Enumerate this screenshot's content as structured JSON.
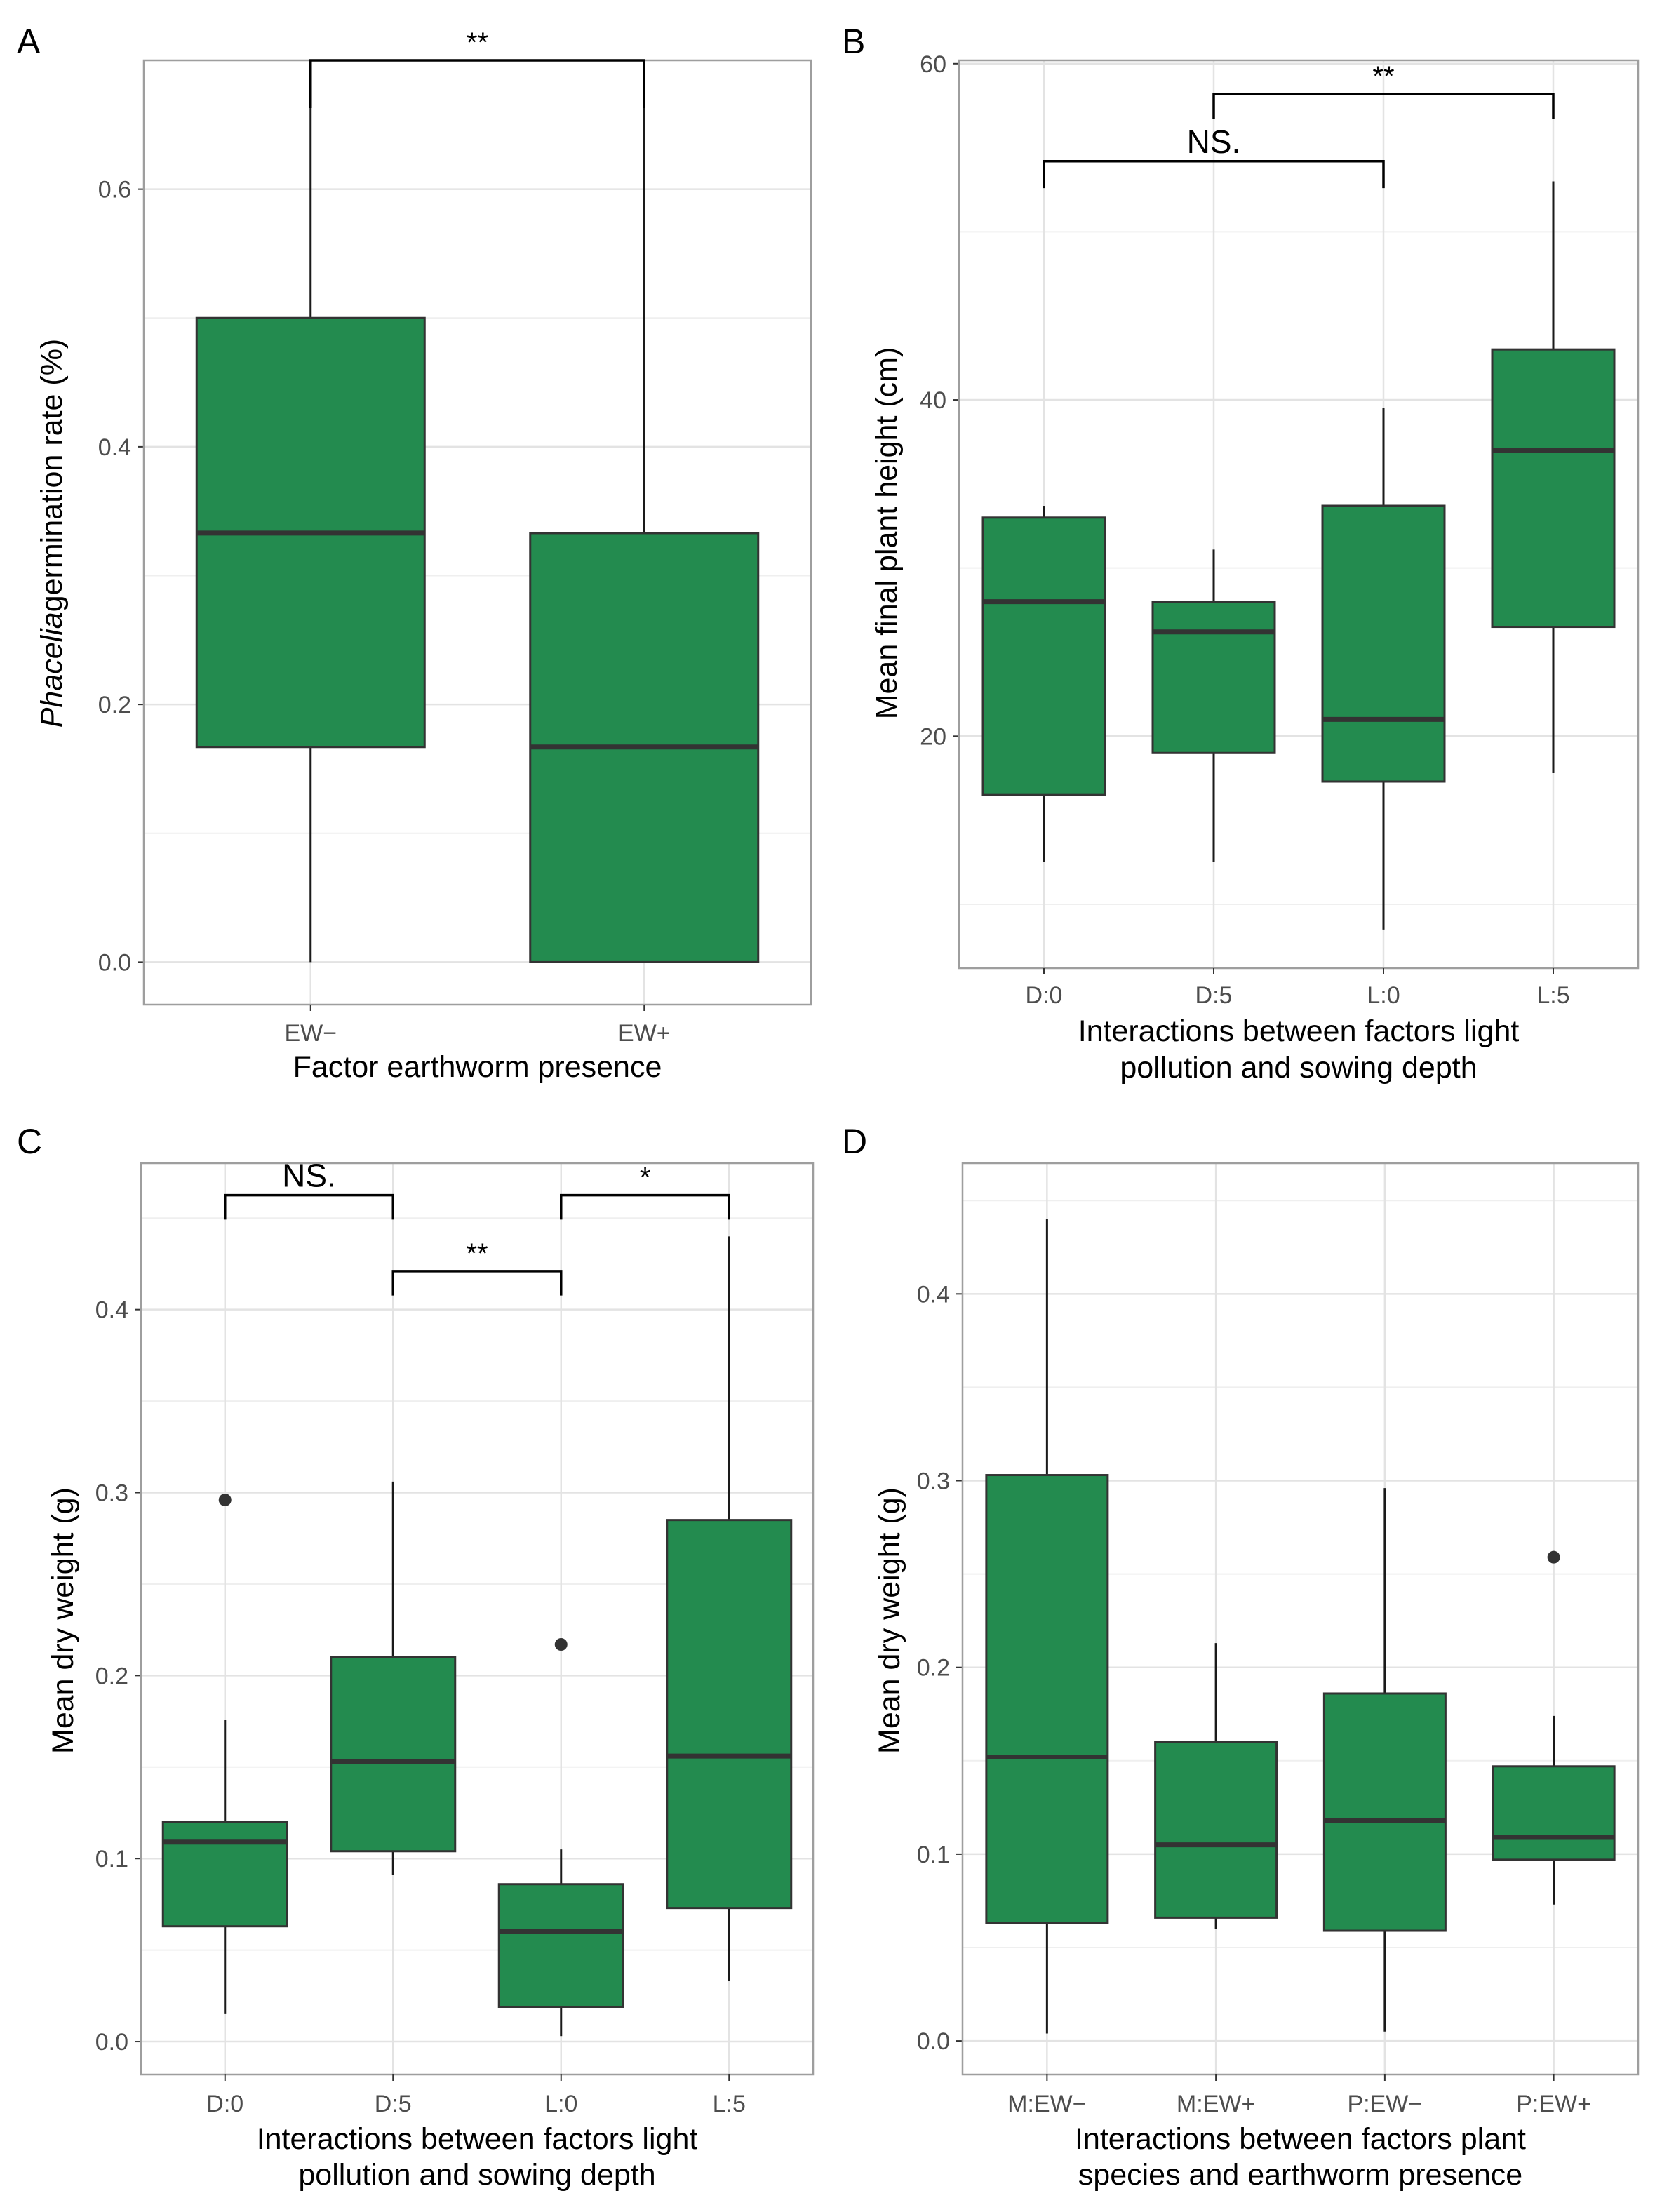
{
  "chart_data": [
    {
      "panel": "A",
      "type": "box",
      "categories": [
        "EW−",
        "EW+"
      ],
      "boxes": [
        {
          "min": 0.0,
          "q1": 0.167,
          "median": 0.333,
          "q3": 0.5,
          "max": 0.667,
          "outliers": []
        },
        {
          "min": 0.0,
          "q1": 0.0,
          "median": 0.167,
          "q3": 0.333,
          "max": 0.667,
          "outliers": []
        }
      ],
      "xlabel": [
        "Factor earthworm presence"
      ],
      "ylabel_italic": "Phacelia",
      "ylabel_rest": "germination rate (%)",
      "ylim": [
        -0.033,
        0.7
      ],
      "yticks": [
        0.0,
        0.2,
        0.4,
        0.6
      ],
      "ytick_labels": [
        "0.0",
        "0.2",
        "0.4",
        "0.6"
      ],
      "ygrid_minor": [
        0.1,
        0.3,
        0.5,
        0.7
      ],
      "grid": true,
      "brackets": [
        {
          "from": 0,
          "to": 1,
          "level": 0.7,
          "drop": 0.037,
          "label": "**"
        }
      ]
    },
    {
      "panel": "B",
      "type": "box",
      "categories": [
        "D:0",
        "D:5",
        "L:0",
        "L:5"
      ],
      "boxes": [
        {
          "min": 12.5,
          "q1": 16.5,
          "median": 28,
          "q3": 33,
          "max": 33.7,
          "outliers": []
        },
        {
          "min": 12.5,
          "q1": 19.0,
          "median": 26.2,
          "q3": 28,
          "max": 31.1,
          "outliers": []
        },
        {
          "min": 8.5,
          "q1": 17.3,
          "median": 21.0,
          "q3": 33.7,
          "max": 39.5,
          "outliers": []
        },
        {
          "min": 17.8,
          "q1": 26.5,
          "median": 37.0,
          "q3": 43.0,
          "max": 53.0,
          "outliers": []
        }
      ],
      "xlabel": [
        "Interactions between factors light",
        "pollution and sowing depth"
      ],
      "ylabel": "Mean final plant height (cm)",
      "ylim": [
        6.2,
        60.2
      ],
      "yticks": [
        20,
        40,
        60
      ],
      "ytick_labels": [
        "20",
        "40",
        "60"
      ],
      "ygrid_minor": [
        10,
        30,
        50
      ],
      "grid": true,
      "brackets": [
        {
          "from": 0,
          "to": 2,
          "level": 54.2,
          "drop": 1.6,
          "label": "NS."
        },
        {
          "from": 1,
          "to": 3,
          "level": 58.2,
          "drop": 1.5,
          "label": "**"
        }
      ]
    },
    {
      "panel": "C",
      "type": "box",
      "categories": [
        "D:0",
        "D:5",
        "L:0",
        "L:5"
      ],
      "boxes": [
        {
          "min": 0.015,
          "q1": 0.063,
          "median": 0.109,
          "q3": 0.12,
          "max": 0.176,
          "outliers": [
            0.296
          ]
        },
        {
          "min": 0.091,
          "q1": 0.104,
          "median": 0.153,
          "q3": 0.21,
          "max": 0.306,
          "outliers": []
        },
        {
          "min": 0.003,
          "q1": 0.019,
          "median": 0.06,
          "q3": 0.086,
          "max": 0.105,
          "outliers": [
            0.217
          ]
        },
        {
          "min": 0.033,
          "q1": 0.073,
          "median": 0.156,
          "q3": 0.285,
          "max": 0.44,
          "outliers": []
        }
      ],
      "xlabel": [
        "Interactions between factors light",
        "pollution and sowing depth"
      ],
      "ylabel": "Mean dry weight (g)",
      "ylim": [
        -0.018,
        0.48
      ],
      "yticks": [
        0.0,
        0.1,
        0.2,
        0.3,
        0.4
      ],
      "ytick_labels": [
        "0.0",
        "0.1",
        "0.2",
        "0.3",
        "0.4"
      ],
      "ygrid_minor": [
        0.05,
        0.15,
        0.25,
        0.35,
        0.45
      ],
      "grid": true,
      "brackets": [
        {
          "from": 0,
          "to": 1,
          "level": 0.4625,
          "drop": 0.0133,
          "label": "NS."
        },
        {
          "from": 1,
          "to": 2,
          "level": 0.421,
          "drop": 0.0133,
          "label": "**"
        },
        {
          "from": 2,
          "to": 3,
          "level": 0.4625,
          "drop": 0.0133,
          "label": "*"
        }
      ]
    },
    {
      "panel": "D",
      "type": "box",
      "categories": [
        "M:EW−",
        "M:EW+",
        "P:EW−",
        "P:EW+"
      ],
      "boxes": [
        {
          "min": 0.004,
          "q1": 0.063,
          "median": 0.152,
          "q3": 0.303,
          "max": 0.44,
          "outliers": []
        },
        {
          "min": 0.06,
          "q1": 0.066,
          "median": 0.105,
          "q3": 0.16,
          "max": 0.213,
          "outliers": []
        },
        {
          "min": 0.005,
          "q1": 0.059,
          "median": 0.118,
          "q3": 0.186,
          "max": 0.296,
          "outliers": []
        },
        {
          "min": 0.073,
          "q1": 0.097,
          "median": 0.109,
          "q3": 0.147,
          "max": 0.174,
          "outliers": [
            0.259
          ]
        }
      ],
      "xlabel": [
        "Interactions between factors plant",
        "species and earthworm presence"
      ],
      "ylabel": "Mean dry weight (g)",
      "ylim": [
        -0.018,
        0.47
      ],
      "yticks": [
        0.0,
        0.1,
        0.2,
        0.3,
        0.4
      ],
      "ytick_labels": [
        "0.0",
        "0.1",
        "0.2",
        "0.3",
        "0.4"
      ],
      "ygrid_minor": [
        0.05,
        0.15,
        0.25,
        0.35,
        0.45
      ],
      "grid": true,
      "brackets": []
    }
  ]
}
